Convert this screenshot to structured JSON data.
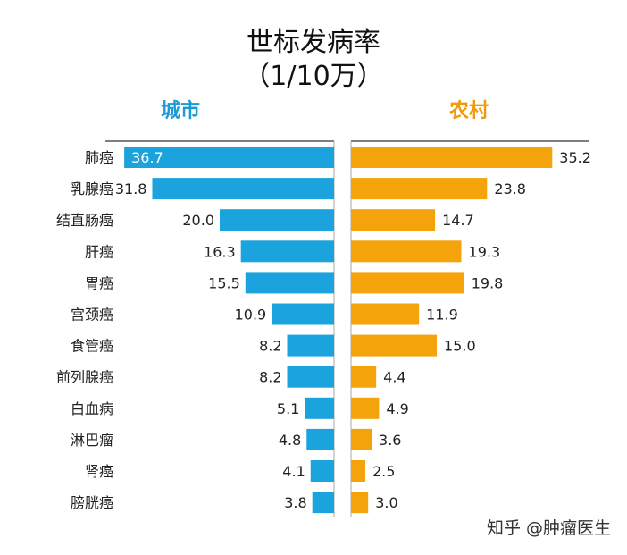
{
  "title": "世标发病率",
  "subtitle": "（1/10万）",
  "left_header": "城市",
  "right_header": "农村",
  "watermark": "知乎 @肿瘤医生",
  "colors": {
    "urban": "#1aa3dc",
    "rural": "#f5a30a",
    "urban_header": "#1a9ad6",
    "rural_header": "#f19a0e"
  },
  "chart_data": {
    "type": "bar",
    "orientation": "horizontal-butterfly",
    "title": "世标发病率（1/10万）",
    "categories": [
      "肺癌",
      "乳腺癌",
      "结直肠癌",
      "肝癌",
      "胃癌",
      "宫颈癌",
      "食管癌",
      "前列腺癌",
      "白血病",
      "淋巴瘤",
      "肾癌",
      "膀胱癌"
    ],
    "series": [
      {
        "name": "城市",
        "values": [
          36.7,
          31.8,
          20.0,
          16.3,
          15.5,
          10.9,
          8.2,
          8.2,
          5.1,
          4.8,
          4.1,
          3.8
        ]
      },
      {
        "name": "农村",
        "values": [
          35.2,
          23.8,
          14.7,
          19.3,
          19.8,
          11.9,
          15.0,
          4.4,
          4.9,
          3.6,
          2.5,
          3.0
        ]
      }
    ],
    "value_labels": {
      "城市": [
        "36.7",
        "31.8",
        "20.0",
        "16.3",
        "15.5",
        "10.9",
        "8.2",
        "8.2",
        "5.1",
        "4.8",
        "4.1",
        "3.8"
      ],
      "农村": [
        "35.2",
        "23.8",
        "14.7",
        "19.3",
        "19.8",
        "11.9",
        "15.0",
        "4.4",
        "4.9",
        "3.6",
        "2.5",
        "3.0"
      ]
    },
    "xlim": [
      0,
      40
    ],
    "grid": false,
    "legend": "none"
  }
}
